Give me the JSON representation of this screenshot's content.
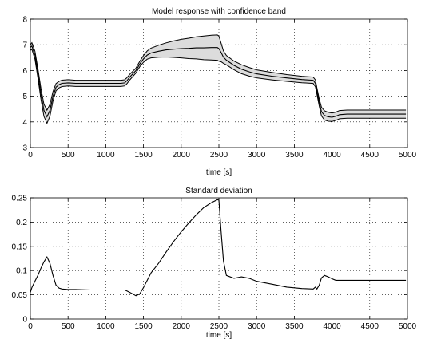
{
  "chart_data": [
    {
      "type": "line",
      "title": "Model response with confidence band",
      "xlabel": "time [s]",
      "ylabel": "",
      "xlim": [
        0,
        5000
      ],
      "ylim": [
        3,
        8
      ],
      "xticks": [
        0,
        500,
        1000,
        1500,
        2000,
        2500,
        3000,
        3500,
        4000,
        4500,
        5000
      ],
      "yticks": [
        3,
        4,
        5,
        6,
        7,
        8
      ],
      "grid": true,
      "band_fill": "#dcdcdc",
      "series": [
        {
          "role": "mean",
          "x": [
            0,
            20,
            60,
            100,
            140,
            180,
            220,
            260,
            300,
            340,
            380,
            420,
            500,
            600,
            800,
            1000,
            1200,
            1250,
            1280,
            1320,
            1400,
            1450,
            1500,
            1550,
            1600,
            1700,
            1800,
            1900,
            2000,
            2100,
            2200,
            2300,
            2400,
            2480,
            2500,
            2530,
            2560,
            2600,
            2700,
            2800,
            2900,
            3000,
            3200,
            3400,
            3600,
            3750,
            3780,
            3800,
            3830,
            3860,
            3900,
            3950,
            4000,
            4050,
            4100,
            4200,
            4300,
            4400,
            4500,
            4700,
            4900,
            4980
          ],
          "y": [
            6.9,
            6.95,
            6.6,
            5.9,
            5.1,
            4.45,
            4.2,
            4.45,
            5.0,
            5.35,
            5.45,
            5.5,
            5.52,
            5.5,
            5.5,
            5.5,
            5.5,
            5.52,
            5.6,
            5.75,
            6.0,
            6.25,
            6.45,
            6.6,
            6.68,
            6.75,
            6.8,
            6.83,
            6.85,
            6.86,
            6.88,
            6.88,
            6.89,
            6.89,
            6.85,
            6.7,
            6.52,
            6.4,
            6.2,
            6.05,
            5.95,
            5.87,
            5.78,
            5.71,
            5.65,
            5.62,
            5.5,
            5.2,
            4.75,
            4.4,
            4.25,
            4.2,
            4.18,
            4.22,
            4.28,
            4.3,
            4.3,
            4.3,
            4.3,
            4.3,
            4.3,
            4.3
          ]
        },
        {
          "role": "standard-deviation",
          "x": [
            0,
            20,
            60,
            100,
            140,
            180,
            220,
            260,
            300,
            340,
            380,
            420,
            500,
            600,
            800,
            1000,
            1200,
            1250,
            1280,
            1320,
            1400,
            1450,
            1500,
            1550,
            1600,
            1700,
            1800,
            1900,
            2000,
            2100,
            2200,
            2300,
            2400,
            2480,
            2500,
            2530,
            2560,
            2600,
            2700,
            2800,
            2900,
            3000,
            3200,
            3400,
            3600,
            3750,
            3780,
            3800,
            3830,
            3860,
            3900,
            3950,
            4000,
            4050,
            4100,
            4200,
            4300,
            4400,
            4500,
            4700,
            4900,
            4980
          ],
          "y": [
            0.055,
            0.065,
            0.078,
            0.09,
            0.105,
            0.118,
            0.128,
            0.115,
            0.09,
            0.07,
            0.064,
            0.062,
            0.061,
            0.061,
            0.06,
            0.06,
            0.06,
            0.06,
            0.058,
            0.055,
            0.048,
            0.052,
            0.065,
            0.08,
            0.095,
            0.115,
            0.138,
            0.16,
            0.18,
            0.198,
            0.215,
            0.23,
            0.24,
            0.246,
            0.245,
            0.18,
            0.12,
            0.09,
            0.084,
            0.087,
            0.084,
            0.078,
            0.072,
            0.066,
            0.063,
            0.062,
            0.066,
            0.062,
            0.07,
            0.085,
            0.09,
            0.087,
            0.083,
            0.08,
            0.08,
            0.08,
            0.08,
            0.08,
            0.08,
            0.08,
            0.08,
            0.08
          ]
        }
      ]
    },
    {
      "type": "line",
      "title": "Standard deviation",
      "xlabel": "time [s]",
      "ylabel": "",
      "xlim": [
        0,
        5000
      ],
      "ylim": [
        0,
        0.25
      ],
      "xticks": [
        0,
        500,
        1000,
        1500,
        2000,
        2500,
        3000,
        3500,
        4000,
        4500,
        5000
      ],
      "yticks": [
        0,
        0.05,
        0.1,
        0.15,
        0.2,
        0.25
      ],
      "grid": true
    }
  ]
}
